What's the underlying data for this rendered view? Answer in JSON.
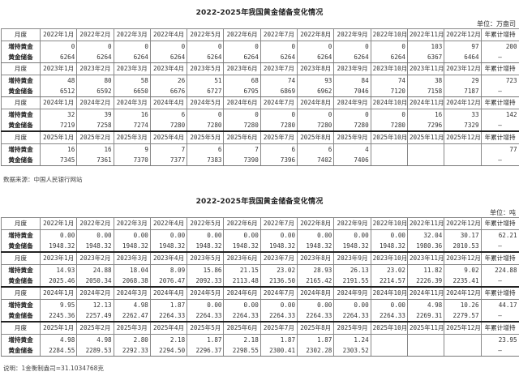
{
  "tables": [
    {
      "title": "2022-2025年我国黄金储备变化情况",
      "unit": "单位：万盎司",
      "header_label": "月度",
      "total_label": "年累计增持",
      "increase_label": "增持黄金",
      "reserve_label": "黄金储备",
      "dash": "—",
      "blocks": [
        {
          "months": [
            "2022年1月",
            "2022年2月",
            "2022年3月",
            "2022年4月",
            "2022年5月",
            "2022年6月",
            "2022年7月",
            "2022年8月",
            "2022年9月",
            "2022年10月",
            "2022年11月",
            "2022年12月"
          ],
          "increase": [
            "0",
            "0",
            "0",
            "0",
            "0",
            "0",
            "0",
            "0",
            "0",
            "0",
            "103",
            "97"
          ],
          "reserves": [
            "6264",
            "6264",
            "6264",
            "6264",
            "6264",
            "6264",
            "6264",
            "6264",
            "6264",
            "6264",
            "6367",
            "6464"
          ],
          "total": "200"
        },
        {
          "months": [
            "2023年1月",
            "2023年2月",
            "2023年3月",
            "2023年4月",
            "2023年5月",
            "2023年6月",
            "2023年7月",
            "2023年8月",
            "2023年9月",
            "2023年10月",
            "2023年11月",
            "2023年12月"
          ],
          "increase": [
            "48",
            "80",
            "58",
            "26",
            "51",
            "68",
            "74",
            "93",
            "84",
            "74",
            "38",
            "29"
          ],
          "reserves": [
            "6512",
            "6592",
            "6650",
            "6676",
            "6727",
            "6795",
            "6869",
            "6962",
            "7046",
            "7120",
            "7158",
            "7187"
          ],
          "total": "723"
        },
        {
          "months": [
            "2024年1月",
            "2024年2月",
            "2024年3月",
            "2024年4月",
            "2024年5月",
            "2024年6月",
            "2024年7月",
            "2024年8月",
            "2024年9月",
            "2024年10月",
            "2024年11月",
            "2024年12月"
          ],
          "increase": [
            "32",
            "39",
            "16",
            "6",
            "0",
            "0",
            "0",
            "0",
            "0",
            "0",
            "16",
            "33"
          ],
          "reserves": [
            "7219",
            "7258",
            "7274",
            "7280",
            "7280",
            "7280",
            "7280",
            "7280",
            "7280",
            "7280",
            "7296",
            "7329"
          ],
          "total": "142"
        },
        {
          "months": [
            "2025年1月",
            "2025年2月",
            "2025年3月",
            "2025年4月",
            "2025年5月",
            "2025年6月",
            "2025年7月",
            "2025年8月",
            "2025年9月",
            "2025年10月",
            "2025年11月",
            "2025年12月"
          ],
          "increase": [
            "16",
            "16",
            "9",
            "7",
            "6",
            "7",
            "6",
            "6",
            "4",
            "",
            "",
            ""
          ],
          "reserves": [
            "7345",
            "7361",
            "7370",
            "7377",
            "7383",
            "7390",
            "7396",
            "7402",
            "7406",
            "",
            "",
            ""
          ],
          "total": "77"
        }
      ],
      "note": "数据来源：中国人民银行网站"
    },
    {
      "title": "2022-2025年我国黄金储备变化情况",
      "unit": "单位：吨",
      "header_label": "月度",
      "total_label": "年累计增持",
      "increase_label": "增持黄金",
      "reserve_label": "黄金储备",
      "dash": "—",
      "blocks": [
        {
          "months": [
            "2022年1月",
            "2022年2月",
            "2022年3月",
            "2022年4月",
            "2022年5月",
            "2022年6月",
            "2022年7月",
            "2022年8月",
            "2022年9月",
            "2022年10月",
            "2022年11月",
            "2022年12月"
          ],
          "increase": [
            "0.00",
            "0.00",
            "0.00",
            "0.00",
            "0.00",
            "0.00",
            "0.00",
            "0.00",
            "0.00",
            "0.00",
            "32.04",
            "30.17"
          ],
          "reserves": [
            "1948.32",
            "1948.32",
            "1948.32",
            "1948.32",
            "1948.32",
            "1948.32",
            "1948.32",
            "1948.32",
            "1948.32",
            "1948.32",
            "1980.36",
            "2010.53"
          ],
          "total": "62.21"
        },
        {
          "months": [
            "2023年1月",
            "2023年2月",
            "2023年3月",
            "2023年4月",
            "2023年5月",
            "2023年6月",
            "2023年7月",
            "2023年8月",
            "2023年9月",
            "2023年10月",
            "2023年11月",
            "2023年12月"
          ],
          "increase": [
            "14.93",
            "24.88",
            "18.04",
            "8.09",
            "15.86",
            "21.15",
            "23.02",
            "28.93",
            "26.13",
            "23.02",
            "11.82",
            "9.02"
          ],
          "reserves": [
            "2025.46",
            "2050.34",
            "2068.38",
            "2076.47",
            "2092.33",
            "2113.48",
            "2136.50",
            "2165.42",
            "2191.55",
            "2214.57",
            "2226.39",
            "2235.41"
          ],
          "total": "224.88"
        },
        {
          "months": [
            "2024年1月",
            "2024年2月",
            "2024年3月",
            "2024年4月",
            "2024年5月",
            "2024年6月",
            "2024年7月",
            "2024年8月",
            "2024年9月",
            "2024年10月",
            "2024年11月",
            "2024年12月"
          ],
          "increase": [
            "9.95",
            "12.13",
            "4.98",
            "1.87",
            "0.00",
            "0.00",
            "0.00",
            "0.00",
            "0.00",
            "0.00",
            "4.98",
            "10.26"
          ],
          "reserves": [
            "2245.36",
            "2257.49",
            "2262.47",
            "2264.33",
            "2264.33",
            "2264.33",
            "2264.33",
            "2264.33",
            "2264.33",
            "2264.33",
            "2269.31",
            "2279.57"
          ],
          "total": "44.17"
        },
        {
          "months": [
            "2025年1月",
            "2025年2月",
            "2025年3月",
            "2025年4月",
            "2025年5月",
            "2025年6月",
            "2025年7月",
            "2025年8月",
            "2025年9月",
            "2025年10月",
            "2025年11月",
            "2025年12月"
          ],
          "increase": [
            "4.98",
            "4.98",
            "2.80",
            "2.18",
            "1.87",
            "2.18",
            "1.87",
            "1.87",
            "1.24",
            "",
            "",
            ""
          ],
          "reserves": [
            "2284.55",
            "2289.53",
            "2292.33",
            "2294.50",
            "2296.37",
            "2298.55",
            "2300.41",
            "2302.28",
            "2303.52",
            "",
            "",
            ""
          ],
          "total": "23.95"
        }
      ],
      "note": "说明：1金衡制盎司=31.1034768克"
    }
  ]
}
